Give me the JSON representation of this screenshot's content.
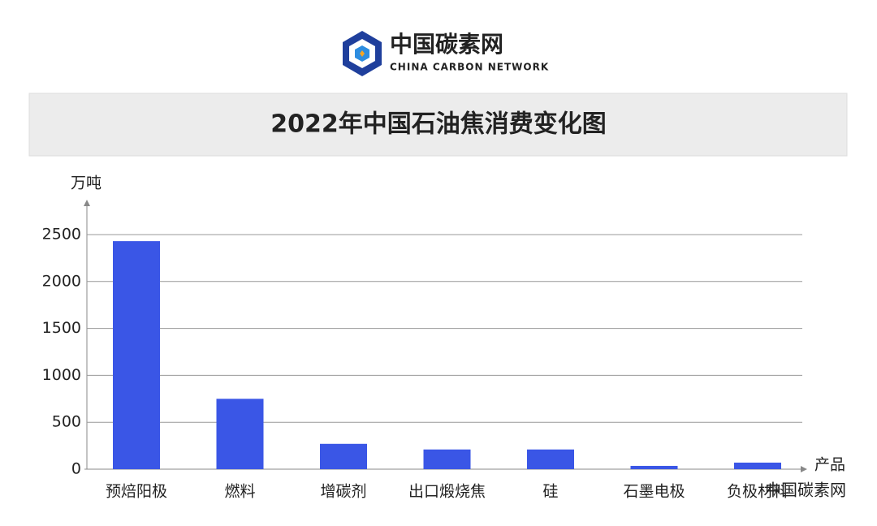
{
  "header": {
    "logo_title": "中国碳素网",
    "logo_subtitle": "CHINA CARBON NETWORK"
  },
  "chart_data": {
    "type": "bar",
    "title": "2022年中国石油焦消费变化图",
    "y_label": "万吨",
    "x_label": "产品",
    "categories": [
      "预焙阳极",
      "燃料",
      "增碳剂",
      "出口煅烧焦",
      "硅",
      "石墨电极",
      "负极材料"
    ],
    "values": [
      2430,
      750,
      270,
      210,
      210,
      35,
      70
    ],
    "color": "#3a56e6",
    "ylim": [
      0,
      2500
    ],
    "yticks": [
      0,
      500,
      1000,
      1500,
      2000,
      2500
    ],
    "grid": true
  },
  "footer": {
    "watermark": "中国碳素网"
  }
}
